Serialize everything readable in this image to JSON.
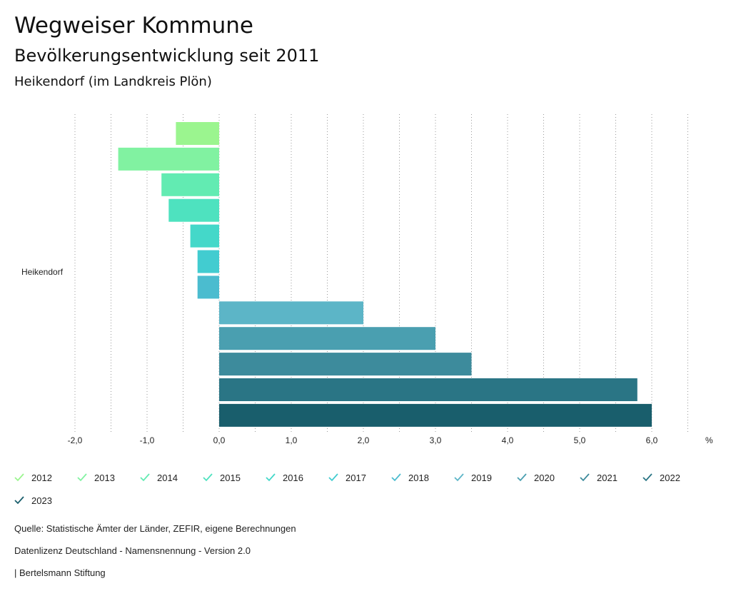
{
  "header": {
    "title": "Wegweiser Kommune",
    "subtitle": "Bevölkerungsentwicklung seit 2011",
    "region": "Heikendorf (im Landkreis Plön)"
  },
  "chart_data": {
    "type": "bar",
    "orientation": "horizontal",
    "categories": [
      "Heikendorf"
    ],
    "unit_label": "%",
    "xlim": [
      -2.0,
      6.5
    ],
    "ticks": [
      "-2,0",
      "-1,0",
      "0,0",
      "1,0",
      "2,0",
      "3,0",
      "4,0",
      "5,0",
      "6,0"
    ],
    "grid": true,
    "series": [
      {
        "name": "2012",
        "values": [
          -0.6
        ],
        "color": "#9bf58f"
      },
      {
        "name": "2013",
        "values": [
          -1.4
        ],
        "color": "#81f2a1"
      },
      {
        "name": "2014",
        "values": [
          -0.8
        ],
        "color": "#62ebb2"
      },
      {
        "name": "2015",
        "values": [
          -0.7
        ],
        "color": "#4ee2bf"
      },
      {
        "name": "2016",
        "values": [
          -0.4
        ],
        "color": "#44d8c9"
      },
      {
        "name": "2017",
        "values": [
          -0.3
        ],
        "color": "#42ccd0"
      },
      {
        "name": "2018",
        "values": [
          -0.3
        ],
        "color": "#4bbccf"
      },
      {
        "name": "2019",
        "values": [
          2.0
        ],
        "color": "#5cb5c7"
      },
      {
        "name": "2020",
        "values": [
          3.0
        ],
        "color": "#4a9fb0"
      },
      {
        "name": "2021",
        "values": [
          3.5
        ],
        "color": "#3d8b9c"
      },
      {
        "name": "2022",
        "values": [
          5.8
        ],
        "color": "#2a7585"
      },
      {
        "name": "2023",
        "values": [
          6.0
        ],
        "color": "#195e6c"
      }
    ]
  },
  "footer": {
    "source": "Quelle: Statistische Ämter der Länder, ZEFIR, eigene Berechnungen",
    "license": "Datenlizenz Deutschland - Namensnennung - Version 2.0",
    "publisher": "| Bertelsmann Stiftung"
  }
}
